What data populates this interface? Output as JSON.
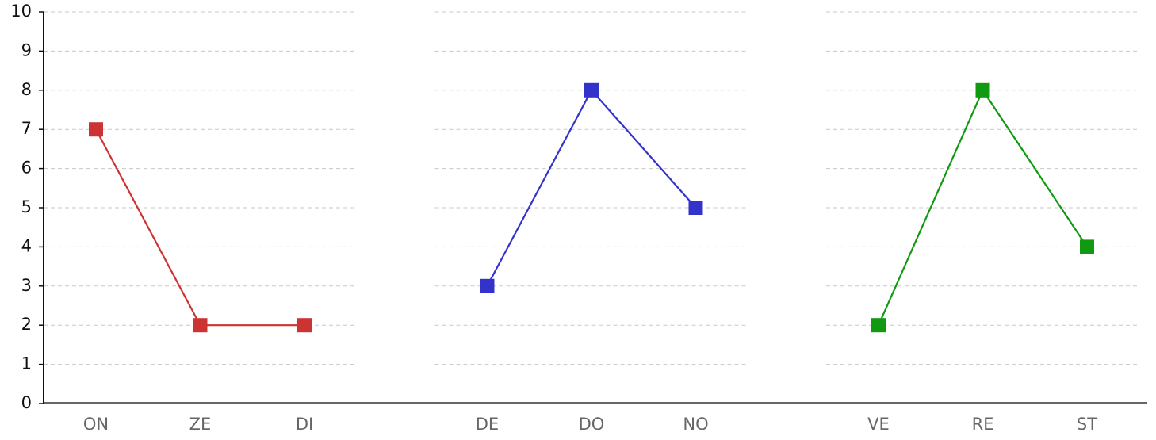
{
  "chart_data": {
    "type": "line",
    "ylim": [
      0,
      10
    ],
    "yticks": [
      0,
      1,
      2,
      3,
      4,
      5,
      6,
      7,
      8,
      9,
      10
    ],
    "grid": true,
    "series": [
      {
        "categories": [
          "ON",
          "ZE",
          "DI"
        ],
        "color": "#cc3333",
        "values": [
          7,
          2,
          2
        ]
      },
      {
        "categories": [
          "DE",
          "DO",
          "NO"
        ],
        "color": "#3333cc",
        "values": [
          3,
          8,
          5
        ]
      },
      {
        "categories": [
          "VE",
          "RE",
          "ST"
        ],
        "color": "#119911",
        "values": [
          2,
          8,
          4
        ]
      }
    ]
  }
}
